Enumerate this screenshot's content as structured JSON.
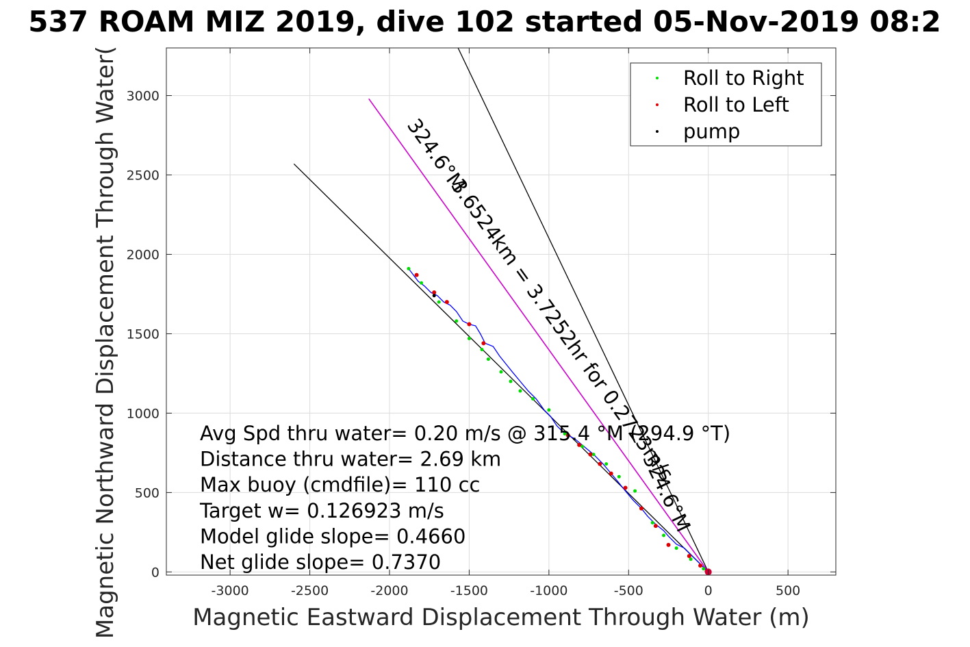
{
  "chart_data": {
    "type": "line",
    "title": "537 ROAM MIZ 2019, dive 102 started 05-Nov-2019 08:2",
    "xlabel": "Magnetic Eastward Displacement Through Water (m)",
    "ylabel": "Magnetic Northward Displacement Through Water(",
    "xlim": [
      -3400,
      800
    ],
    "ylim": [
      -20,
      3300
    ],
    "xticks": [
      -3000,
      -2500,
      -2000,
      -1500,
      -1000,
      -500,
      0,
      500
    ],
    "xtick_labels": [
      "-3000",
      "-2500",
      "-2000",
      "-1500",
      "-1000",
      "-500",
      "0",
      "500"
    ],
    "yticks": [
      0,
      500,
      1000,
      1500,
      2000,
      2500,
      3000
    ],
    "ytick_labels": [
      "0",
      "500",
      "1000",
      "1500",
      "2000",
      "2500",
      "3000"
    ],
    "grid": true,
    "legend_position": "top-right",
    "legend": [
      {
        "label": "Roll to Right",
        "color": "#00dd00"
      },
      {
        "label": "Roll to Left",
        "color": "#dd0000"
      },
      {
        "label": "pump",
        "color": "#000000"
      }
    ],
    "annotations": [
      "Avg Spd thru water=  0.20 m/s @ 315.4 °M (294.9 °T)",
      "Distance thru water=  2.69 km",
      "Max buoy (cmdfile)= 110 cc",
      "Target w= 0.126923 m/s",
      "Model glide slope= 0.4660",
      "Net glide slope= 0.7370"
    ],
    "reference_lines": [
      {
        "name": "course line",
        "color": "#000000",
        "x": [
          0,
          -2600
        ],
        "y": [
          0,
          2570
        ]
      },
      {
        "name": "heading line",
        "color": "#000000",
        "x": [
          0,
          -1570
        ],
        "y": [
          0,
          3300
        ]
      },
      {
        "name": "magenta",
        "color": "#cc00cc",
        "x": [
          0,
          -2130
        ],
        "y": [
          0,
          2980
        ],
        "label": "3.6524km = 3.7252hr for 0.2723m/s 324.6°M"
      },
      {
        "name": "label",
        "color": "#000000",
        "x": [
          0,
          -1570
        ],
        "y": [
          0,
          3300
        ],
        "label": "324.6°M"
      }
    ],
    "line_labels": [
      {
        "text": "324.6°M",
        "x": -1740,
        "y": 2600
      },
      {
        "text": "3.6524km = 3.7252hr for 0.2723m/s",
        "x": -950,
        "y": 1500
      },
      {
        "text": "324.6°M",
        "x": -300,
        "y": 480
      }
    ],
    "series": [
      {
        "color": "#0000ff",
        "x": [
          0,
          -30,
          -70,
          -100,
          -150,
          -200,
          -250,
          -280,
          -330,
          -380,
          -420,
          -470,
          -520,
          -560,
          -610,
          -660,
          -720,
          -780,
          -840,
          -900,
          -950,
          -990,
          -1030,
          -1080,
          -1130,
          -1180,
          -1230,
          -1270,
          -1310,
          -1350,
          -1400,
          -1430,
          -1460,
          -1500,
          -1540,
          -1580,
          -1620,
          -1660,
          -1700,
          -1740,
          -1780,
          -1820,
          -1880
        ],
        "y": [
          0,
          30,
          70,
          100,
          150,
          175,
          225,
          260,
          300,
          350,
          400,
          450,
          510,
          560,
          620,
          680,
          740,
          790,
          840,
          870,
          920,
          980,
          1020,
          1090,
          1140,
          1200,
          1260,
          1310,
          1360,
          1420,
          1440,
          1500,
          1550,
          1560,
          1580,
          1640,
          1680,
          1700,
          1740,
          1760,
          1800,
          1830,
          1910
        ]
      }
    ],
    "markers": {
      "roll_right": {
        "x": [
          -30,
          -110,
          -200,
          -280,
          -350,
          -460,
          -560,
          -640,
          -720,
          -790,
          -900,
          -1000,
          -1100,
          -1180,
          -1240,
          -1300,
          -1380,
          -1420,
          -1500,
          -1580,
          -1690,
          -1800,
          -1880
        ],
        "y": [
          20,
          80,
          150,
          230,
          310,
          510,
          600,
          680,
          740,
          790,
          870,
          1020,
          1090,
          1140,
          1200,
          1260,
          1340,
          1400,
          1470,
          1580,
          1700,
          1820,
          1910
        ]
      },
      "roll_left": {
        "x": [
          -10,
          -50,
          -120,
          -250,
          -330,
          -420,
          -520,
          -610,
          -680,
          -740,
          -810,
          -880,
          -1410,
          -1500,
          -1640,
          -1720,
          -1830
        ],
        "y": [
          5,
          40,
          100,
          170,
          290,
          400,
          530,
          620,
          680,
          740,
          800,
          860,
          1440,
          1560,
          1700,
          1760,
          1870
        ]
      },
      "pump": {
        "x": [
          0,
          -1720
        ],
        "y": [
          0,
          1740
        ]
      }
    }
  }
}
